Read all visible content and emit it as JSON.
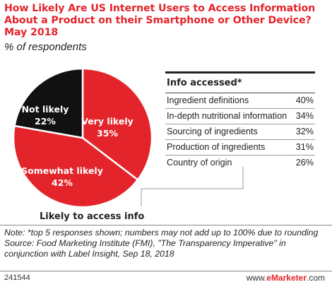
{
  "title": "How Likely Are US Internet Users to Access Information About a Product on their Smartphone or Other Device? May 2018",
  "subtitle": "% of respondents",
  "chart_data": {
    "type": "pie",
    "title": "How Likely Are US Internet Users to Access Information About a Product on their Smartphone or Other Device? May 2018",
    "subtitle": "% of respondents",
    "categories": [
      "Very likely",
      "Somewhat likely",
      "Not likely"
    ],
    "values": [
      35,
      42,
      22
    ],
    "value_labels": [
      "35%",
      "42%",
      "22%"
    ],
    "colors": [
      "#e4242b",
      "#e4242b",
      "#111111"
    ],
    "grouping_label": "Likely to access info",
    "sub_table": {
      "header": "Info accessed*",
      "rows": [
        {
          "label": "Ingredient definitions",
          "value": "40%"
        },
        {
          "label": "In-depth nutritional information",
          "value": "34%"
        },
        {
          "label": "Sourcing of ingredients",
          "value": "32%"
        },
        {
          "label": "Production of ingredients",
          "value": "31%"
        },
        {
          "label": "Country of origin",
          "value": "26%"
        }
      ]
    }
  },
  "note": "Note: *top 5 responses shown; numbers may not add up to 100% due to rounding",
  "source": "Source: Food Marketing Institute (FMI), \"The Transparency Imperative\" in conjunction with Label Insight, Sep 18, 2018",
  "footer": {
    "id": "241544",
    "site_prefix": "www.",
    "site_brand": "eMarketer",
    "site_suffix": ".com"
  }
}
